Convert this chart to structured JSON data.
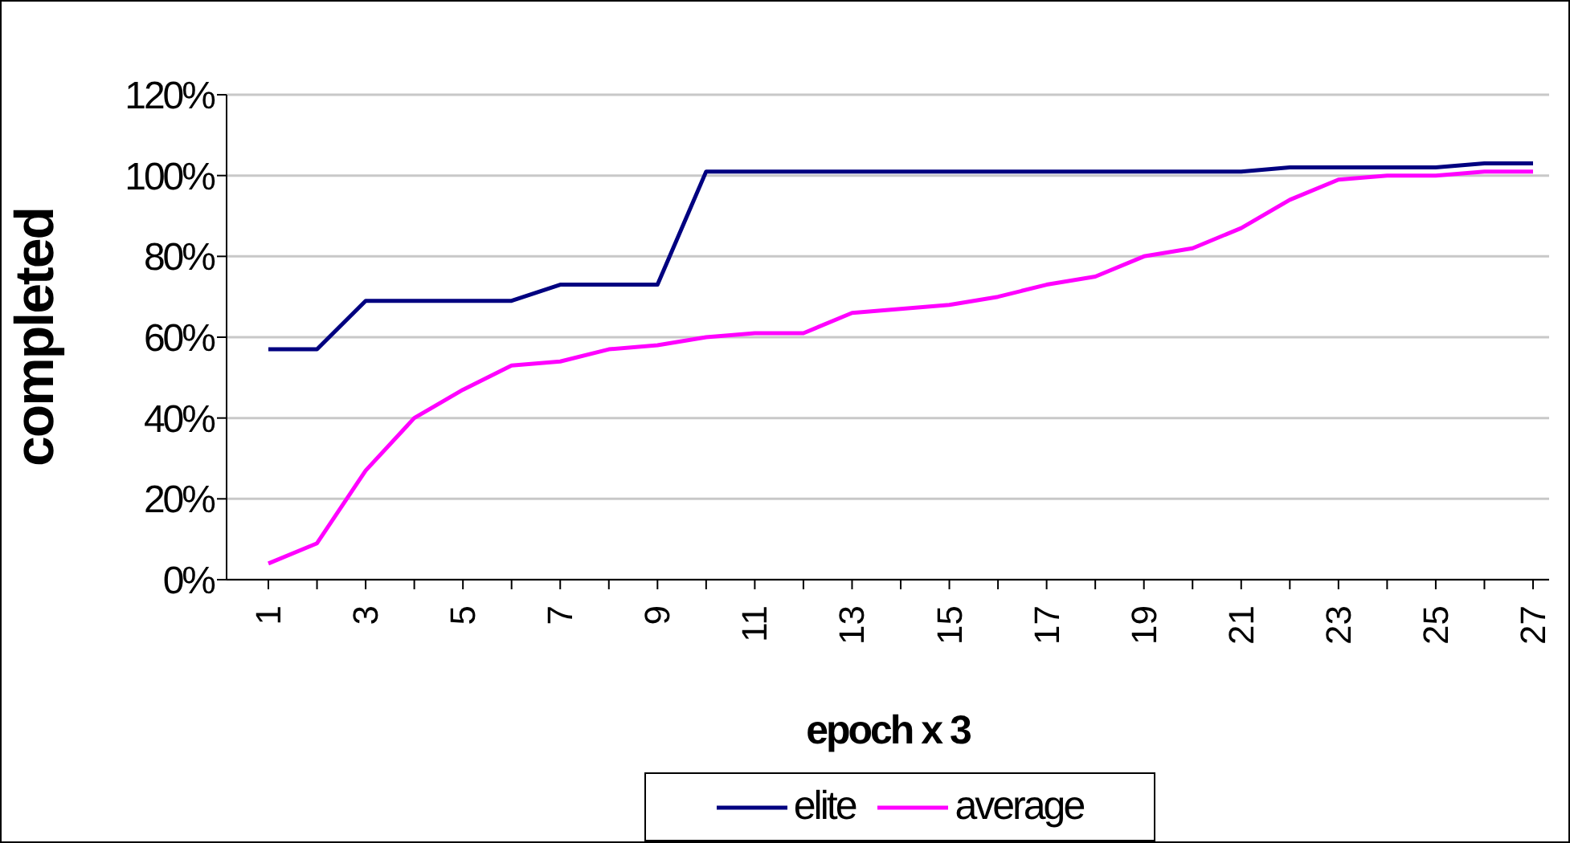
{
  "chart_data": {
    "type": "line",
    "xlabel": "epoch x 3",
    "ylabel": "completed",
    "categories": [
      "1",
      null,
      "3",
      null,
      "5",
      null,
      "7",
      null,
      "9",
      null,
      "11",
      null,
      "13",
      null,
      "15",
      null,
      "17",
      null,
      "19",
      null,
      "21",
      null,
      "23",
      null,
      "25",
      null,
      "27"
    ],
    "series": [
      {
        "name": "elite",
        "color": "#000080",
        "values": [
          57,
          57,
          69,
          69,
          69,
          69,
          73,
          73,
          73,
          101,
          101,
          101,
          101,
          101,
          101,
          101,
          101,
          101,
          101,
          101,
          101,
          102,
          102,
          102,
          102,
          103,
          103
        ]
      },
      {
        "name": "average",
        "color": "#ff00ff",
        "values": [
          4,
          9,
          27,
          40,
          47,
          53,
          54,
          57,
          58,
          60,
          61,
          61,
          66,
          67,
          68,
          70,
          73,
          75,
          80,
          82,
          87,
          94,
          99,
          100,
          100,
          101,
          101
        ]
      }
    ],
    "ylim": [
      0,
      120
    ],
    "yticks": [
      {
        "value": 0,
        "label": "0%"
      },
      {
        "value": 20,
        "label": "20%"
      },
      {
        "value": 40,
        "label": "40%"
      },
      {
        "value": 60,
        "label": "60%"
      },
      {
        "value": 80,
        "label": "80%"
      },
      {
        "value": 100,
        "label": "100%"
      },
      {
        "value": 120,
        "label": "120%"
      }
    ],
    "grid": "y",
    "legend": "bottom",
    "marker": "none",
    "line_style": "solid"
  }
}
